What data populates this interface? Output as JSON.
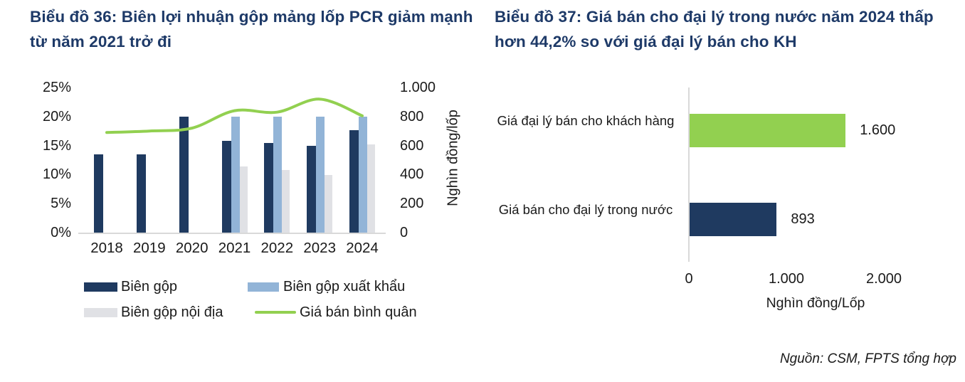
{
  "source_note": "Nguồn: CSM, FPTS tổng hợp",
  "colors": {
    "title": "#1e3a68",
    "navy": "#1f3a60",
    "light_blue": "#92b4d7",
    "gray": "#e0e1e5",
    "green": "#92d050",
    "axis_line": "#d9d9d9",
    "text": "#1a1a1a"
  },
  "chart_data": [
    {
      "id": "chart-36",
      "type": "bar",
      "subtype": "combo bar+line, dual axis",
      "title": "Biểu đồ 36: Biên lợi nhuận gộp mảng lốp PCR giảm mạnh từ năm 2021 trở đi",
      "categories": [
        "2018",
        "2019",
        "2020",
        "2021",
        "2022",
        "2023",
        "2024"
      ],
      "series": [
        {
          "name": "Biên gộp",
          "type": "bar",
          "axis": "left",
          "color": "#1f3a60",
          "values": [
            13.5,
            13.5,
            20,
            15.8,
            15.4,
            14.9,
            17.6
          ]
        },
        {
          "name": "Biên gộp xuất khẩu",
          "type": "bar",
          "axis": "left",
          "color": "#92b4d7",
          "values": [
            null,
            null,
            null,
            20,
            20,
            20,
            20
          ]
        },
        {
          "name": "Biên gộp nội địa",
          "type": "bar",
          "axis": "left",
          "color": "#e0e1e5",
          "values": [
            null,
            null,
            null,
            11.4,
            10.8,
            9.9,
            15.2
          ]
        },
        {
          "name": "Giá bán bình quân",
          "type": "line",
          "axis": "right",
          "color": "#92d050",
          "values": [
            690,
            700,
            720,
            840,
            830,
            920,
            805
          ]
        }
      ],
      "left_axis": {
        "unit": "%",
        "min": 0,
        "max": 25,
        "ticks": [
          "25%",
          "20%",
          "15%",
          "10%",
          "5%",
          "0%"
        ]
      },
      "right_axis": {
        "label": "Nghìn đồng/lốp",
        "min": 0,
        "max": 1000,
        "ticks": [
          "1.000",
          "800",
          "600",
          "400",
          "200",
          "0"
        ]
      },
      "grid": false,
      "legend_position": "bottom"
    },
    {
      "id": "chart-37",
      "type": "bar",
      "subtype": "horizontal",
      "title": "Biểu đồ 37: Giá bán cho đại lý trong nước năm 2024 thấp hơn 44,2% so với giá đại lý bán cho KH",
      "categories": [
        "Giá đại lý bán cho khách hàng",
        "Giá bán cho đại lý trong nước"
      ],
      "values": [
        1600,
        893
      ],
      "value_labels": [
        "1.600",
        "893"
      ],
      "bar_colors": [
        "#92d050",
        "#1f3a60"
      ],
      "xlabel": "Nghìn đồng/Lốp",
      "x_ticks": [
        "0",
        "1.000",
        "2.000"
      ],
      "xlim": [
        0,
        2000
      ],
      "grid": false
    }
  ]
}
